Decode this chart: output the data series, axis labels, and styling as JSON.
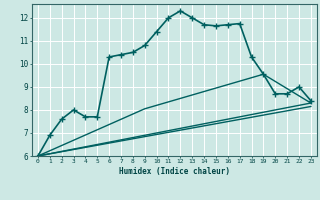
{
  "xlabel": "Humidex (Indice chaleur)",
  "bg_color": "#cde8e4",
  "grid_color": "#ffffff",
  "line_color": "#006060",
  "xlim": [
    -0.5,
    23.5
  ],
  "ylim": [
    6,
    12.6
  ],
  "xticks": [
    0,
    1,
    2,
    3,
    4,
    5,
    6,
    7,
    8,
    9,
    10,
    11,
    12,
    13,
    14,
    15,
    16,
    17,
    18,
    19,
    20,
    21,
    22,
    23
  ],
  "yticks": [
    6,
    7,
    8,
    9,
    10,
    11,
    12
  ],
  "series": [
    {
      "x": [
        0,
        1,
        2,
        3,
        4,
        5,
        6,
        7,
        8,
        9,
        10,
        11,
        12,
        13,
        14,
        15,
        16,
        17,
        18,
        19,
        20,
        21,
        22,
        23
      ],
      "y": [
        6.0,
        6.9,
        7.6,
        8.0,
        7.7,
        7.7,
        10.3,
        10.4,
        10.5,
        10.8,
        11.4,
        12.0,
        12.3,
        12.0,
        11.7,
        11.65,
        11.7,
        11.75,
        10.3,
        9.55,
        8.7,
        8.7,
        9.0,
        8.4
      ],
      "marker": "+",
      "linewidth": 1.2,
      "markersize": 4
    },
    {
      "x": [
        0,
        23
      ],
      "y": [
        6.0,
        8.3
      ],
      "marker": null,
      "linewidth": 1.0,
      "markersize": 0
    },
    {
      "x": [
        0,
        23
      ],
      "y": [
        6.0,
        8.15
      ],
      "marker": null,
      "linewidth": 1.0,
      "markersize": 0
    },
    {
      "x": [
        0,
        9,
        19,
        23
      ],
      "y": [
        6.0,
        8.05,
        9.55,
        8.3
      ],
      "marker": null,
      "linewidth": 1.0,
      "markersize": 0
    }
  ]
}
